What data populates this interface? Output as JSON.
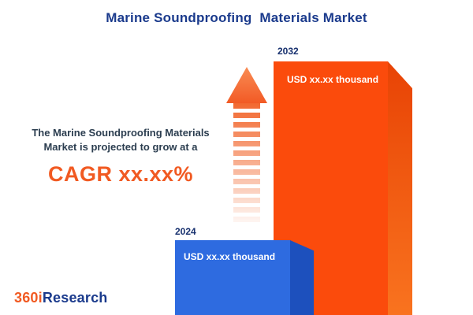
{
  "title": "Marine Soundproofing  Materials Market",
  "description": {
    "line1": "The Marine Soundproofing Materials",
    "line2": "Market is projected to grow at a",
    "cagr": "CAGR xx.xx%"
  },
  "bars": [
    {
      "year": "2024",
      "value_label": "USD xx.xx thousand",
      "color": "#2e6be0"
    },
    {
      "year": "2032",
      "value_label": "USD xx.xx thousand",
      "color": "#fb4b0c"
    }
  ],
  "chart_data": {
    "type": "bar",
    "title": "Marine Soundproofing Materials Market",
    "categories": [
      "2024",
      "2032"
    ],
    "values": [
      "xx.xx",
      "xx.xx"
    ],
    "unit": "USD thousand",
    "value_labels": [
      "USD xx.xx thousand",
      "USD xx.xx thousand"
    ],
    "series_colors": [
      "#2e6be0",
      "#fb4b0c"
    ],
    "legend": "none",
    "grid": "off",
    "note": "values redacted as placeholders in source image; 2032 bar drawn ~3.4x taller than 2024 bar"
  },
  "logo": {
    "part1": "360i",
    "part2": "Research"
  },
  "colors": {
    "title_navy": "#1a3a8c",
    "accent_orange": "#f15a22",
    "bar_2032_front": "#fb4b0c",
    "bar_2032_side": "#e84305",
    "bar_2024_front": "#2e6be0",
    "bar_2024_side": "#1d50bd",
    "background": "#ffffff"
  }
}
